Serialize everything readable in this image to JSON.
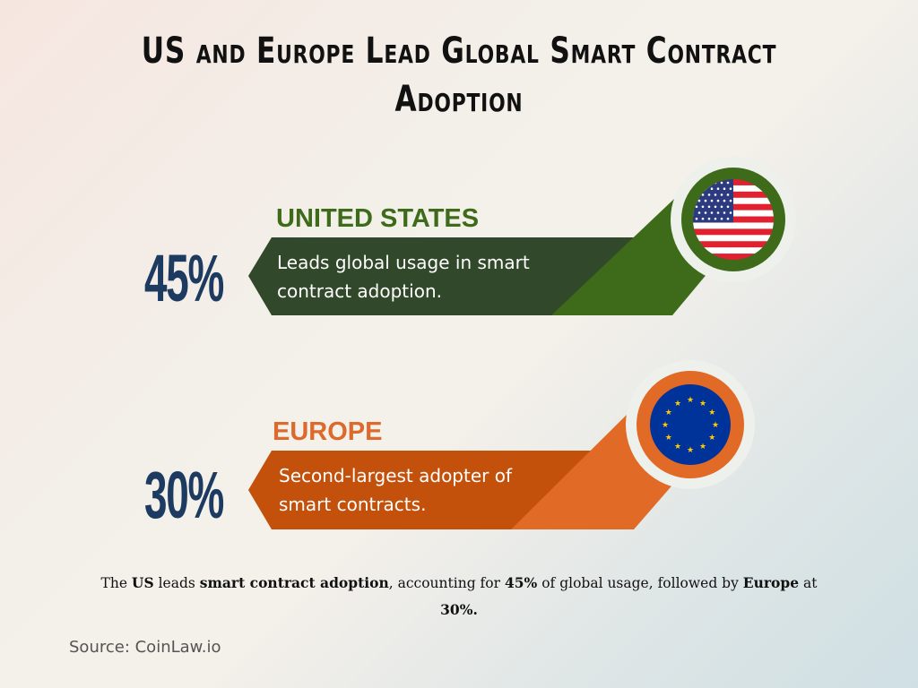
{
  "title": "US and Europe Lead Global Smart Contract Adoption",
  "colors": {
    "us_dark": "#31482a",
    "us_light": "#3d6b1a",
    "eu_dark": "#c4510b",
    "eu_light": "#e06a26",
    "navy": "#1d3a60"
  },
  "items": [
    {
      "region": "UNITED STATES",
      "percent": "45%",
      "value": 45,
      "description": "Leads global usage in smart contract adoption.",
      "icon": "us-flag-icon"
    },
    {
      "region": "EUROPE",
      "percent": "30%",
      "value": 30,
      "description": "Second-largest adopter of smart contracts.",
      "icon": "eu-flag-icon"
    }
  ],
  "summary": {
    "p1": "The ",
    "b1": "US",
    "p2": " leads ",
    "b2": "smart contract adoption",
    "p3": ", accounting for ",
    "b3": "45%",
    "p4": " of global usage, followed by ",
    "b4": "Europe",
    "p5": " at ",
    "b5": "30%."
  },
  "source": "Source: CoinLaw.io"
}
